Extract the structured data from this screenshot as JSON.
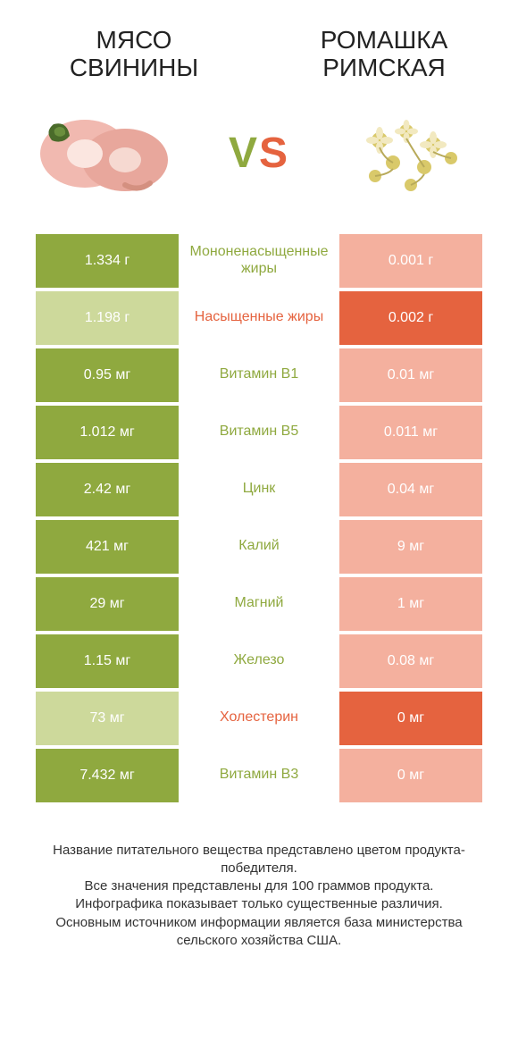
{
  "colors": {
    "left": "#8fa93f",
    "right": "#e5633f",
    "left_dim": "#cdd99b",
    "right_dim": "#f4b09e",
    "mid_bg": "#ffffff",
    "text_dark": "#222222"
  },
  "products": {
    "left_title": "Мясо свинины",
    "right_title": "Ромашка Римская"
  },
  "vs": {
    "v": "V",
    "s": "S"
  },
  "rows": [
    {
      "label": "Мононенасыщенные жиры",
      "left": "1.334 г",
      "right": "0.001 г",
      "winner": "left"
    },
    {
      "label": "Насыщенные жиры",
      "left": "1.198 г",
      "right": "0.002 г",
      "winner": "right"
    },
    {
      "label": "Витамин B1",
      "left": "0.95 мг",
      "right": "0.01 мг",
      "winner": "left"
    },
    {
      "label": "Витамин B5",
      "left": "1.012 мг",
      "right": "0.011 мг",
      "winner": "left"
    },
    {
      "label": "Цинк",
      "left": "2.42 мг",
      "right": "0.04 мг",
      "winner": "left"
    },
    {
      "label": "Калий",
      "left": "421 мг",
      "right": "9 мг",
      "winner": "left"
    },
    {
      "label": "Магний",
      "left": "29 мг",
      "right": "1 мг",
      "winner": "left"
    },
    {
      "label": "Железо",
      "left": "1.15 мг",
      "right": "0.08 мг",
      "winner": "left"
    },
    {
      "label": "Холестерин",
      "left": "73 мг",
      "right": "0 мг",
      "winner": "right"
    },
    {
      "label": "Витамин B3",
      "left": "7.432 мг",
      "right": "0 мг",
      "winner": "left"
    }
  ],
  "footer": {
    "line1": "Название питательного вещества представлено цветом продукта-победителя.",
    "line2": "Все значения представлены для 100 граммов продукта.",
    "line3": "Инфографика показывает только существенные различия.",
    "line4": "Основным источником информации является база министерства сельского хозяйства США."
  }
}
